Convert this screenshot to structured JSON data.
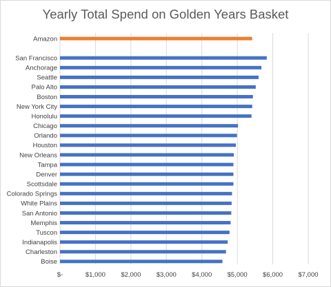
{
  "chart_data": {
    "type": "bar",
    "orientation": "horizontal",
    "title": "Yearly Total Spend on Golden Years Basket",
    "xlabel": "",
    "ylabel": "",
    "xlim": [
      0,
      7000
    ],
    "x_ticks": [
      "$-",
      "$1,000",
      "$2,000",
      "$3,000",
      "$4,000",
      "$5,000",
      "$6,000",
      "$7,000"
    ],
    "grid": true,
    "legend": "none",
    "colors": {
      "highlight": "#ed7d31",
      "default": "#4472c4"
    },
    "highlight_category": "Amazon",
    "categories": [
      "Amazon",
      "",
      "San Francisco",
      "Anchorage",
      "Seattle",
      "Palo Alto",
      "Boston",
      "New York City",
      "Honolulu",
      "Chicago",
      "Orlando",
      "Houston",
      "New Orleans",
      "Tampa",
      "Denver",
      "Scottsdale",
      "Colorado Springs",
      "White Plains",
      "San Antonio",
      "Memphis",
      "Tuscon",
      "Indianapolis",
      "Charleston",
      "Boise"
    ],
    "values": [
      5420,
      null,
      5830,
      5680,
      5600,
      5520,
      5440,
      5420,
      5400,
      5020,
      4990,
      4960,
      4900,
      4890,
      4890,
      4890,
      4850,
      4840,
      4830,
      4810,
      4780,
      4730,
      4680,
      4580
    ]
  }
}
